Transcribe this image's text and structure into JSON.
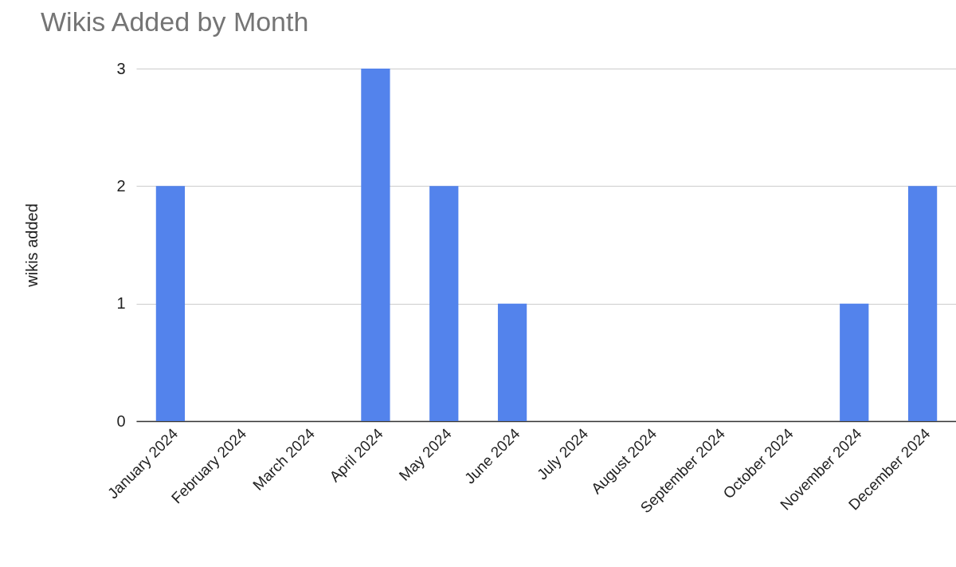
{
  "chart_data": {
    "type": "bar",
    "title": "Wikis Added by Month",
    "ylabel": "wikis added",
    "categories": [
      "January 2024",
      "February 2024",
      "March 2024",
      "April 2024",
      "May 2024",
      "June 2024",
      "July 2024",
      "August 2024",
      "September 2024",
      "October 2024",
      "November 2024",
      "December 2024"
    ],
    "values": [
      2,
      0,
      0,
      3,
      2,
      1,
      0,
      0,
      0,
      0,
      1,
      2
    ],
    "color": "#5383ec",
    "ylim": [
      0,
      3
    ],
    "yticks": [
      0,
      1,
      2,
      3
    ],
    "grid": "y"
  }
}
